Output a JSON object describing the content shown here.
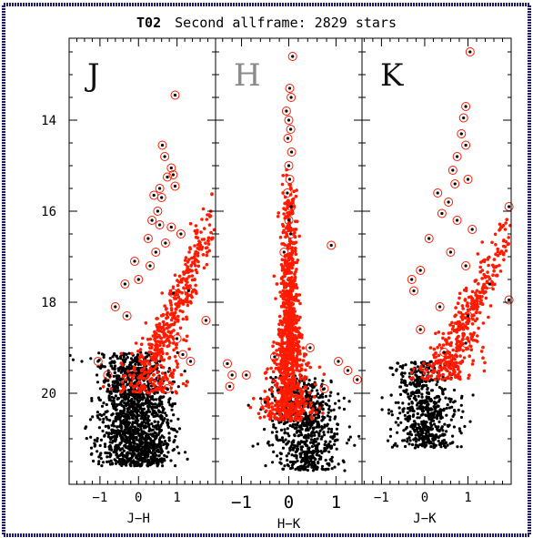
{
  "chart_data": {
    "type": "scatter",
    "title_prefix": "T02",
    "title_rest": "Second allframe: 2829 stars",
    "y_axis": {
      "label": "",
      "ticks": [
        14,
        16,
        18,
        20
      ],
      "range": [
        12.2,
        22.0
      ],
      "inverted": true
    },
    "panels": [
      {
        "name": "J",
        "band_label": "J",
        "xlabel": "J−H",
        "xlim": [
          -1.8,
          2.0
        ],
        "xticks": [
          -1,
          0,
          1
        ],
        "xtick_labels": [
          "−1",
          "0",
          "1"
        ],
        "black_cloud": {
          "n": 1500,
          "x_center": -0.1,
          "x_sigma": 0.45,
          "y_min": 19.1,
          "y_max": 21.6
        },
        "red_branch": {
          "n": 520,
          "x_at_20": 0.05,
          "x_slope": -0.12,
          "x_sigma": 0.2,
          "y_min": 15.2,
          "y_max": 20.0
        },
        "circled_points": [
          {
            "x": 0.95,
            "y": 13.45
          },
          {
            "x": 0.62,
            "y": 14.55
          },
          {
            "x": 0.68,
            "y": 14.8
          },
          {
            "x": 0.85,
            "y": 15.05
          },
          {
            "x": 0.9,
            "y": 15.2
          },
          {
            "x": 0.75,
            "y": 15.25
          },
          {
            "x": 0.55,
            "y": 15.5
          },
          {
            "x": 0.95,
            "y": 15.45
          },
          {
            "x": 0.4,
            "y": 15.65
          },
          {
            "x": 0.6,
            "y": 15.7
          },
          {
            "x": 0.5,
            "y": 16.0
          },
          {
            "x": 0.35,
            "y": 16.2
          },
          {
            "x": 0.55,
            "y": 16.3
          },
          {
            "x": 0.85,
            "y": 16.35
          },
          {
            "x": 1.1,
            "y": 16.5
          },
          {
            "x": 0.25,
            "y": 16.6
          },
          {
            "x": 0.7,
            "y": 16.7
          },
          {
            "x": 0.45,
            "y": 16.9
          },
          {
            "x": -0.1,
            "y": 17.1
          },
          {
            "x": 0.3,
            "y": 17.2
          },
          {
            "x": -0.35,
            "y": 17.6
          },
          {
            "x": 0.0,
            "y": 17.5
          },
          {
            "x": 1.3,
            "y": 17.75
          },
          {
            "x": 0.9,
            "y": 17.8
          },
          {
            "x": -0.6,
            "y": 18.1
          },
          {
            "x": 1.75,
            "y": 18.4
          },
          {
            "x": -0.3,
            "y": 18.3
          },
          {
            "x": 1.0,
            "y": 18.8
          },
          {
            "x": 1.15,
            "y": 19.15
          },
          {
            "x": 1.35,
            "y": 19.3
          },
          {
            "x": -1.05,
            "y": 19.3
          },
          {
            "x": -0.8,
            "y": 19.6
          },
          {
            "x": 0.75,
            "y": 19.9
          }
        ]
      },
      {
        "name": "H",
        "band_label": "H",
        "xlabel": "H−K",
        "xlim": [
          -1.55,
          1.55
        ],
        "xticks": [
          -1,
          0,
          1
        ],
        "xtick_labels": [
          "−1",
          "0",
          "1"
        ],
        "black_cloud": {
          "n": 700,
          "x_center": 0.35,
          "x_sigma": 0.35,
          "y_min": 19.6,
          "y_max": 21.7
        },
        "red_branch": {
          "n": 1050,
          "x_at_20": 0.0,
          "x_slope": 0.0,
          "x_sigma": 0.1,
          "y_min": 15.0,
          "y_max": 20.6
        },
        "circled_points": [
          {
            "x": 0.08,
            "y": 12.6
          },
          {
            "x": 0.02,
            "y": 13.3
          },
          {
            "x": 0.05,
            "y": 13.5
          },
          {
            "x": -0.05,
            "y": 13.8
          },
          {
            "x": 0.0,
            "y": 14.0
          },
          {
            "x": 0.04,
            "y": 14.2
          },
          {
            "x": -0.02,
            "y": 14.4
          },
          {
            "x": 0.06,
            "y": 14.7
          },
          {
            "x": 0.0,
            "y": 15.0
          },
          {
            "x": 0.02,
            "y": 15.3
          },
          {
            "x": -0.03,
            "y": 15.6
          },
          {
            "x": 0.05,
            "y": 15.9
          },
          {
            "x": 0.0,
            "y": 16.2
          },
          {
            "x": 0.04,
            "y": 16.5
          },
          {
            "x": 0.9,
            "y": 16.75
          },
          {
            "x": -0.1,
            "y": 16.9
          },
          {
            "x": -1.3,
            "y": 19.35
          },
          {
            "x": -1.2,
            "y": 19.6
          },
          {
            "x": -1.25,
            "y": 19.85
          },
          {
            "x": -0.9,
            "y": 19.6
          },
          {
            "x": 1.05,
            "y": 19.3
          },
          {
            "x": 1.25,
            "y": 19.5
          },
          {
            "x": 1.45,
            "y": 19.7
          },
          {
            "x": -0.5,
            "y": 20.2
          },
          {
            "x": 0.75,
            "y": 19.9
          },
          {
            "x": -0.3,
            "y": 19.2
          },
          {
            "x": 0.45,
            "y": 19.0
          }
        ]
      },
      {
        "name": "K",
        "band_label": "K",
        "xlabel": "J−K",
        "xlim": [
          -1.45,
          2.0
        ],
        "xticks": [
          -1,
          0,
          1
        ],
        "xtick_labels": [
          "−1",
          "0",
          "1"
        ],
        "black_cloud": {
          "n": 600,
          "x_center": 0.0,
          "x_sigma": 0.35,
          "y_min": 19.3,
          "y_max": 21.2
        },
        "red_branch": {
          "n": 430,
          "x_at_20": 0.2,
          "x_slope": -0.12,
          "x_sigma": 0.18,
          "y_min": 15.6,
          "y_max": 19.7
        },
        "circled_points": [
          {
            "x": 1.05,
            "y": 12.5
          },
          {
            "x": 0.95,
            "y": 13.7
          },
          {
            "x": 0.9,
            "y": 13.95
          },
          {
            "x": 0.85,
            "y": 14.3
          },
          {
            "x": 0.95,
            "y": 14.55
          },
          {
            "x": 0.75,
            "y": 14.8
          },
          {
            "x": 0.65,
            "y": 15.1
          },
          {
            "x": 0.7,
            "y": 15.4
          },
          {
            "x": 1.0,
            "y": 15.3
          },
          {
            "x": 0.3,
            "y": 15.6
          },
          {
            "x": 0.55,
            "y": 15.8
          },
          {
            "x": 1.95,
            "y": 15.9
          },
          {
            "x": 0.4,
            "y": 16.05
          },
          {
            "x": 0.75,
            "y": 16.2
          },
          {
            "x": 1.1,
            "y": 16.4
          },
          {
            "x": 0.1,
            "y": 16.6
          },
          {
            "x": 0.6,
            "y": 16.9
          },
          {
            "x": 0.95,
            "y": 17.2
          },
          {
            "x": -0.1,
            "y": 17.3
          },
          {
            "x": -0.3,
            "y": 17.5
          },
          {
            "x": -0.25,
            "y": 17.75
          },
          {
            "x": 1.5,
            "y": 17.6
          },
          {
            "x": 1.95,
            "y": 17.95
          },
          {
            "x": 0.35,
            "y": 18.1
          },
          {
            "x": 1.0,
            "y": 18.3
          },
          {
            "x": -0.1,
            "y": 18.6
          },
          {
            "x": 0.95,
            "y": 18.9
          },
          {
            "x": 0.45,
            "y": 19.1
          },
          {
            "x": 0.1,
            "y": 19.45
          }
        ]
      }
    ]
  },
  "colors": {
    "border": "#1c1a6e",
    "member_stars": "#ff1a00",
    "field_stars": "#000000"
  }
}
